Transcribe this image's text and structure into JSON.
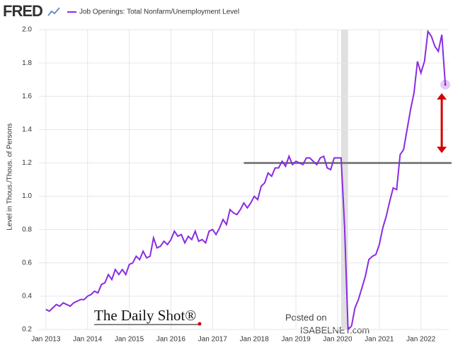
{
  "chart_data": {
    "type": "line",
    "logo": "FRED",
    "y_label": "Level in Thous./Thous. of Persons",
    "x": [
      "2013-01",
      "2013-02",
      "2013-03",
      "2013-04",
      "2013-05",
      "2013-06",
      "2013-07",
      "2013-08",
      "2013-09",
      "2013-10",
      "2013-11",
      "2013-12",
      "2014-01",
      "2014-02",
      "2014-03",
      "2014-04",
      "2014-05",
      "2014-06",
      "2014-07",
      "2014-08",
      "2014-09",
      "2014-10",
      "2014-11",
      "2014-12",
      "2015-01",
      "2015-02",
      "2015-03",
      "2015-04",
      "2015-05",
      "2015-06",
      "2015-07",
      "2015-08",
      "2015-09",
      "2015-10",
      "2015-11",
      "2015-12",
      "2016-01",
      "2016-02",
      "2016-03",
      "2016-04",
      "2016-05",
      "2016-06",
      "2016-07",
      "2016-08",
      "2016-09",
      "2016-10",
      "2016-11",
      "2016-12",
      "2017-01",
      "2017-02",
      "2017-03",
      "2017-04",
      "2017-05",
      "2017-06",
      "2017-07",
      "2017-08",
      "2017-09",
      "2017-10",
      "2017-11",
      "2017-12",
      "2018-01",
      "2018-02",
      "2018-03",
      "2018-04",
      "2018-05",
      "2018-06",
      "2018-07",
      "2018-08",
      "2018-09",
      "2018-10",
      "2018-11",
      "2018-12",
      "2019-01",
      "2019-02",
      "2019-03",
      "2019-04",
      "2019-05",
      "2019-06",
      "2019-07",
      "2019-08",
      "2019-09",
      "2019-10",
      "2019-11",
      "2019-12",
      "2020-01",
      "2020-02",
      "2020-03",
      "2020-04",
      "2020-05",
      "2020-06",
      "2020-07",
      "2020-08",
      "2020-09",
      "2020-10",
      "2020-11",
      "2020-12",
      "2021-01",
      "2021-02",
      "2021-03",
      "2021-04",
      "2021-05",
      "2021-06",
      "2021-07",
      "2021-08",
      "2021-09",
      "2021-10",
      "2021-11",
      "2021-12",
      "2022-01",
      "2022-02",
      "2022-03",
      "2022-04",
      "2022-05",
      "2022-06",
      "2022-07",
      "2022-08"
    ],
    "series": [
      {
        "name": "Job Openings: Total Nonfarm/Unemployment Level",
        "color": "#8a2be2",
        "values": [
          0.32,
          0.31,
          0.33,
          0.35,
          0.34,
          0.36,
          0.35,
          0.34,
          0.36,
          0.37,
          0.38,
          0.38,
          0.4,
          0.41,
          0.43,
          0.42,
          0.47,
          0.48,
          0.53,
          0.5,
          0.56,
          0.53,
          0.56,
          0.53,
          0.59,
          0.6,
          0.64,
          0.62,
          0.67,
          0.63,
          0.64,
          0.75,
          0.69,
          0.7,
          0.73,
          0.71,
          0.74,
          0.79,
          0.76,
          0.77,
          0.72,
          0.76,
          0.74,
          0.79,
          0.73,
          0.74,
          0.72,
          0.79,
          0.8,
          0.77,
          0.81,
          0.86,
          0.83,
          0.92,
          0.9,
          0.89,
          0.92,
          0.96,
          0.93,
          0.96,
          1.0,
          0.98,
          1.06,
          1.08,
          1.14,
          1.12,
          1.17,
          1.17,
          1.21,
          1.18,
          1.24,
          1.19,
          1.21,
          1.2,
          1.19,
          1.23,
          1.23,
          1.21,
          1.19,
          1.23,
          1.24,
          1.17,
          1.16,
          1.23,
          1.23,
          1.23,
          0.82,
          0.2,
          0.22,
          0.33,
          0.38,
          0.45,
          0.52,
          0.62,
          0.64,
          0.65,
          0.71,
          0.81,
          0.88,
          0.97,
          1.05,
          1.04,
          1.25,
          1.28,
          1.4,
          1.52,
          1.62,
          1.81,
          1.74,
          1.81,
          1.99,
          1.96,
          1.9,
          1.87,
          1.97,
          1.67
        ]
      }
    ],
    "xlim": [
      "2012-11",
      "2022-09"
    ],
    "xticks": [
      {
        "value": "2013-01",
        "label": "Jan 2013"
      },
      {
        "value": "2014-01",
        "label": "Jan 2014"
      },
      {
        "value": "2015-01",
        "label": "Jan 2015"
      },
      {
        "value": "2016-01",
        "label": "Jan 2016"
      },
      {
        "value": "2017-01",
        "label": "Jan 2017"
      },
      {
        "value": "2018-01",
        "label": "Jan 2018"
      },
      {
        "value": "2019-01",
        "label": "Jan 2019"
      },
      {
        "value": "2020-01",
        "label": "Jan 2020"
      },
      {
        "value": "2021-01",
        "label": "Jan 2021"
      },
      {
        "value": "2022-01",
        "label": "Jan 2022"
      }
    ],
    "ylim": [
      0.2,
      2.0
    ],
    "yticks": [
      0.2,
      0.4,
      0.6,
      0.8,
      {
        "value": 1.0,
        "label": "1.0"
      },
      1.2,
      1.4,
      1.6,
      1.8,
      {
        "value": 2.0,
        "label": "2.0"
      }
    ],
    "grid": true,
    "recession": [
      "2020-02",
      "2020-04"
    ],
    "reference_line": {
      "value": 1.2,
      "from": "2017-10",
      "color": "#808080"
    },
    "arrow_color": "#d40000",
    "annotations": {
      "source": "The Daily Shot®",
      "posted": "Posted on",
      "site": "ISABELNET.com"
    }
  }
}
